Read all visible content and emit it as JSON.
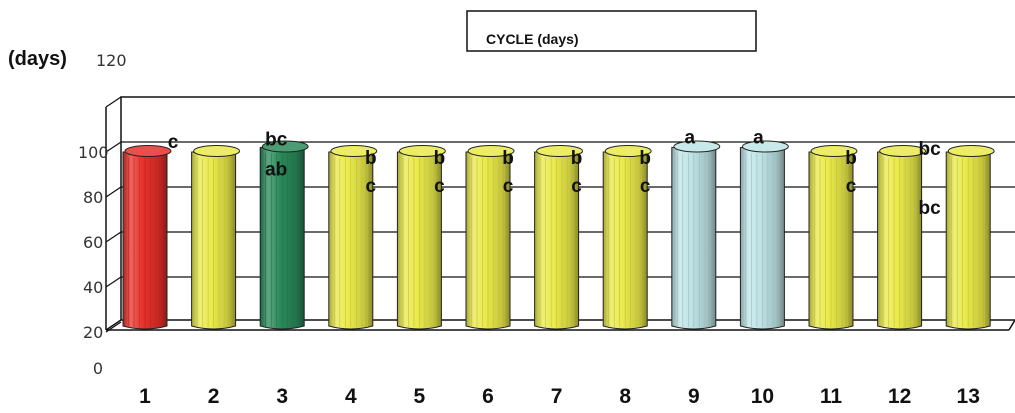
{
  "chart_data": {
    "type": "bar",
    "title": "CYCLE (days)",
    "ylabel": "(days)",
    "xlabel": "",
    "categories": [
      "1",
      "2",
      "3",
      "4",
      "5",
      "6",
      "7",
      "8",
      "9",
      "10",
      "11",
      "12",
      "13"
    ],
    "values": [
      100,
      100,
      102,
      100,
      100,
      100,
      100,
      100,
      102,
      102,
      100,
      100,
      100
    ],
    "ylim": [
      0,
      120
    ],
    "ytick_labels": [
      "0",
      "20",
      "40",
      "60",
      "80",
      "100",
      "120"
    ],
    "grid": true,
    "legend": "none",
    "bar_colors": [
      "#e8302a",
      "#eaea4a",
      "#2a8a5a",
      "#eaea4a",
      "#eaea4a",
      "#eaea4a",
      "#eaea4a",
      "#eaea4a",
      "#bfe4e6",
      "#bfe4e6",
      "#eaea4a",
      "#eaea4a",
      "#eaea4a"
    ],
    "annotations": [
      {
        "bar": 1,
        "lines": [
          "c"
        ]
      },
      {
        "bar": 3,
        "lines": [
          "bc",
          "ab"
        ]
      },
      {
        "bar": 4,
        "lines": [
          "b",
          "c"
        ]
      },
      {
        "bar": 5,
        "lines": [
          "b",
          "c"
        ]
      },
      {
        "bar": 6,
        "lines": [
          "b",
          "c"
        ]
      },
      {
        "bar": 7,
        "lines": [
          "b",
          "c"
        ]
      },
      {
        "bar": 8,
        "lines": [
          "b",
          "c"
        ]
      },
      {
        "bar": 9,
        "lines": [
          "a"
        ]
      },
      {
        "bar": 10,
        "lines": [
          "a"
        ]
      },
      {
        "bar": 11,
        "lines": [
          "b",
          "c"
        ]
      },
      {
        "bar": 12,
        "lines": [
          "bc",
          "bc"
        ]
      }
    ]
  }
}
